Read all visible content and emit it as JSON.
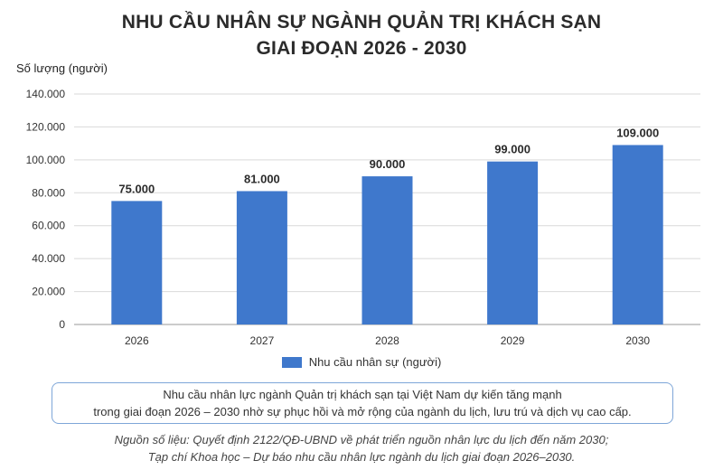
{
  "title_line1": "NHU CẦU NHÂN SỰ NGÀNH QUẢN TRỊ KHÁCH SẠN",
  "title_line2": "GIAI ĐOẠN 2026 - 2030",
  "note_line1": "Nhu cầu nhân lực ngành Quản trị khách sạn tại Việt Nam dự kiến tăng mạnh",
  "note_line2": "trong giai đoạn 2026 – 2030 nhờ sự phục hồi và mở rộng của ngành du lịch, lưu trú và dịch vụ cao cấp.",
  "source_line1": "Nguồn số liệu: Quyết định 2122/QĐ-UBND về phát triển nguồn nhân lực du lịch đến năm 2030;",
  "source_line2": "Tạp chí Khoa học – Dự báo nhu cầu nhân lực ngành du lịch giai đoạn 2026–2030.",
  "colors": {
    "bar": "#3f78cc",
    "text": "#2b2b2b",
    "grid": "#d9d9d9",
    "note_border": "#7ea6d8"
  },
  "chart_data": {
    "type": "bar",
    "categories": [
      "2026",
      "2027",
      "2028",
      "2029",
      "2030"
    ],
    "series": [
      {
        "name": "Nhu cầu nhân sự (người)",
        "values": [
          75000,
          81000,
          90000,
          99000,
          109000
        ]
      }
    ],
    "data_labels": [
      "75.000",
      "81.000",
      "90.000",
      "99.000",
      "109.000"
    ],
    "ylabel": "Số lượng (người)",
    "ylim": [
      0,
      140000
    ],
    "yticks": [
      0,
      20000,
      40000,
      60000,
      80000,
      100000,
      120000,
      140000
    ],
    "ytick_labels": [
      "0",
      "20.000",
      "40.000",
      "60.000",
      "80.000",
      "100.000",
      "120.000",
      "140.000"
    ],
    "grid": true,
    "legend_position": "bottom-center"
  }
}
